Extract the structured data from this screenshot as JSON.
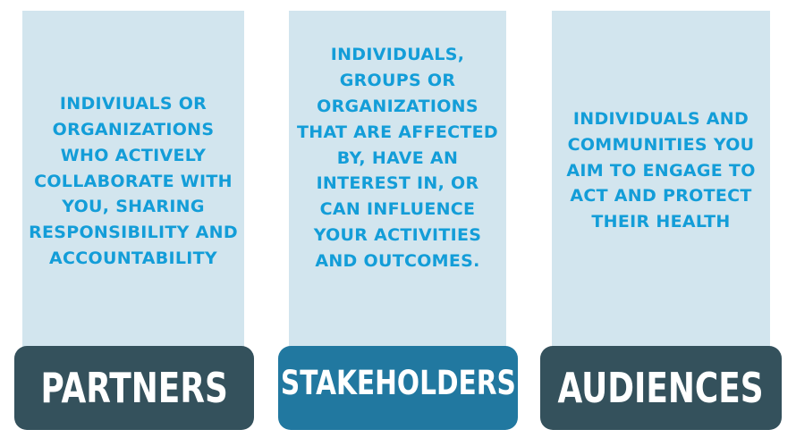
{
  "columns": [
    {
      "id": "partners",
      "label": "PARTNERS",
      "description": "INDIVIUALS OR ORGANIZATIONS WHO ACTIVELY COLLABORATE WITH YOU, SHARING RESPONSIBILITY AND ACCOUNTABILITY",
      "label_color": "#34515c"
    },
    {
      "id": "stakeholders",
      "label": "STAKEHOLDERS",
      "description": "INDIVIDUALS, GROUPS OR ORGANIZATIONS THAT ARE AFFECTED BY, HAVE AN INTEREST IN, OR CAN INFLUENCE YOUR ACTIVITIES AND OUTCOMES.",
      "label_color": "#2178a0"
    },
    {
      "id": "audiences",
      "label": "AUDIENCES",
      "description": "INDIVIDUALS AND COMMUNITIES YOU AIM TO ENGAGE TO ACT AND PROTECT THEIR HEALTH",
      "label_color": "#34515c"
    }
  ],
  "colors": {
    "card_background": "#d2e5ee",
    "description_text": "#139dd8",
    "label_text": "#ffffff"
  }
}
